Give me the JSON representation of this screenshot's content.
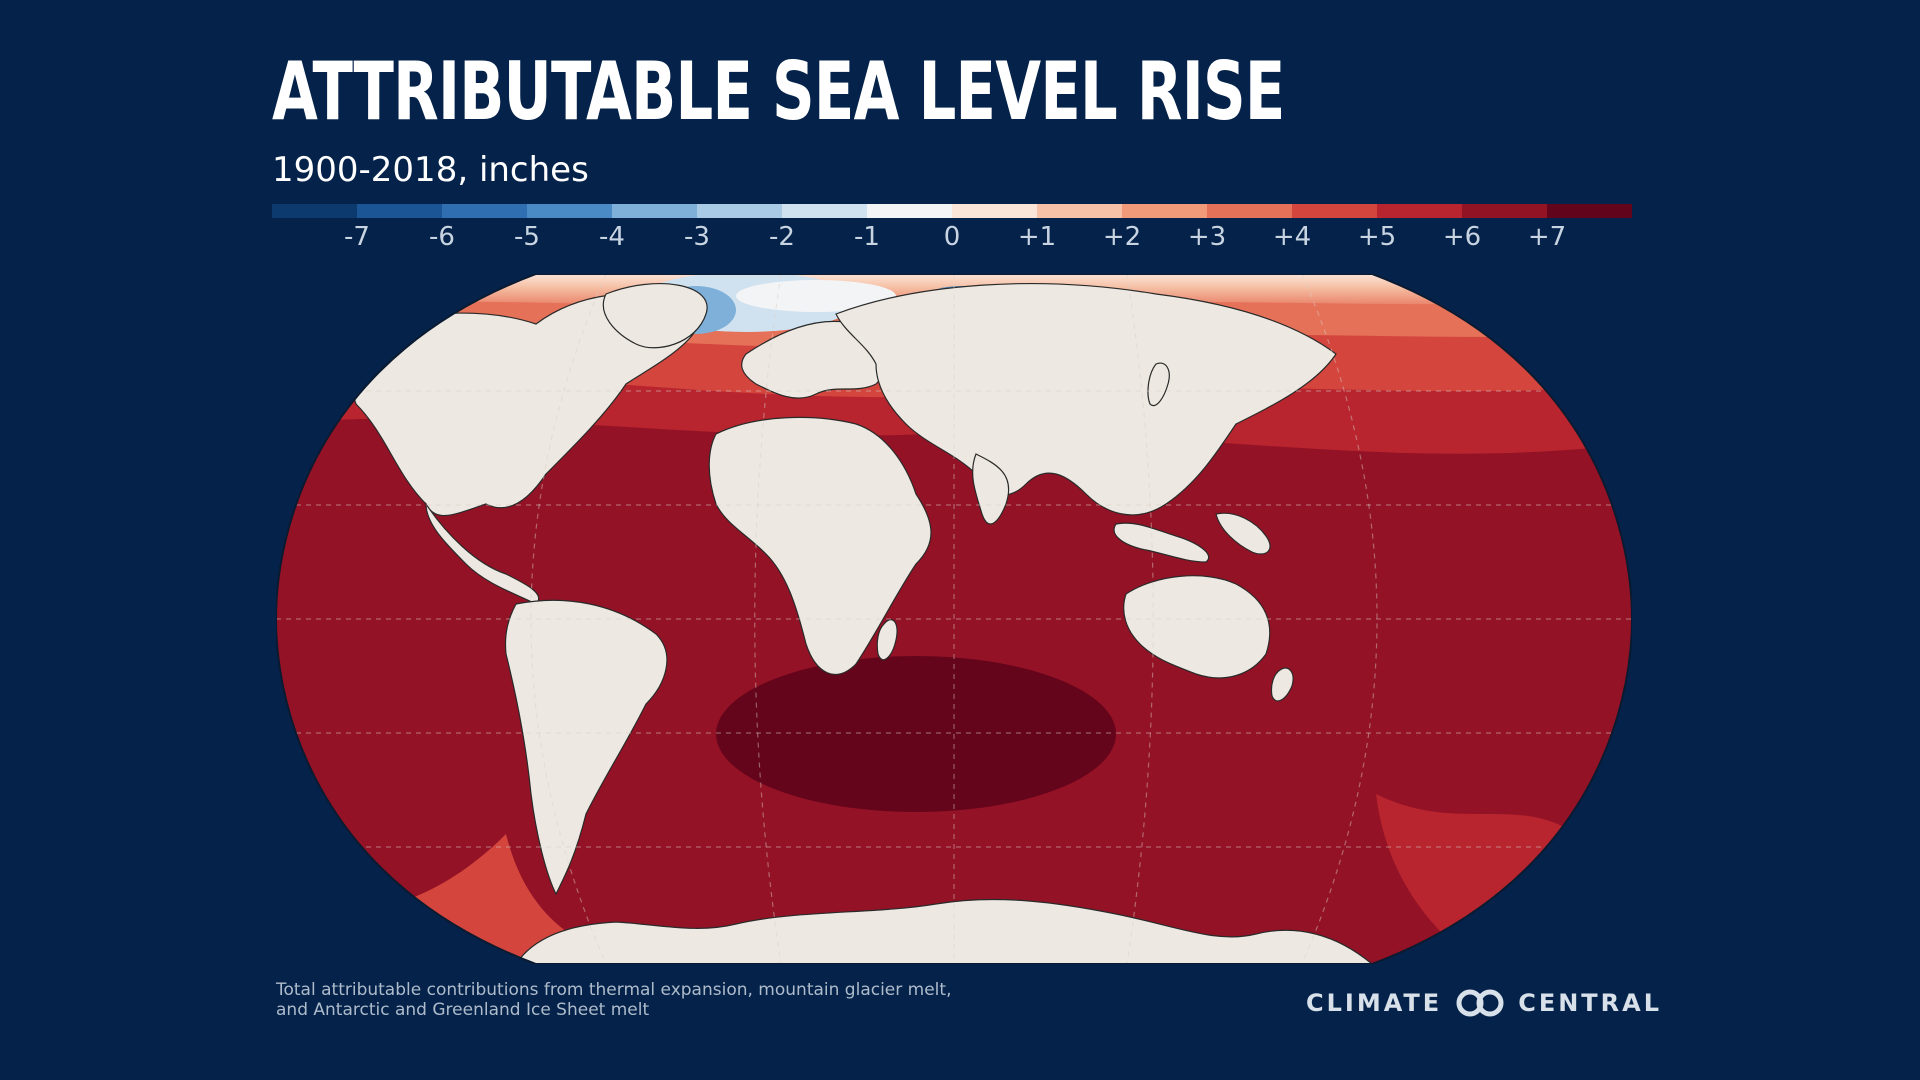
{
  "title": "ATTRIBUTABLE SEA LEVEL RISE",
  "subtitle": "1900-2018, inches",
  "legend": {
    "colors": [
      "#0c3a6e",
      "#1c5596",
      "#2f6fb1",
      "#4a8ac5",
      "#7eb0d9",
      "#a9cbe6",
      "#d0e2f0",
      "#f3f4f6",
      "#fbe4d8",
      "#f6c1a6",
      "#f09a7a",
      "#e57158",
      "#d3453d",
      "#b8252f",
      "#921324",
      "#62041b"
    ],
    "ticks": [
      "-7",
      "-6",
      "-5",
      "-4",
      "-3",
      "-2",
      "-1",
      "0",
      "+1",
      "+2",
      "+3",
      "+4",
      "+5",
      "+6",
      "+7"
    ]
  },
  "map": {
    "ocean_color": "#941226",
    "land_color": "#ede9e2",
    "deep_color": "#65051b"
  },
  "footnote": {
    "line1": "Total attributable contributions from thermal expansion, mountain glacier melt,",
    "line2": "and Antarctic and Greenland Ice Sheet melt"
  },
  "logo": {
    "left": "CLIMATE",
    "right": "CENTRAL",
    "icon": "linked-circles-icon"
  }
}
